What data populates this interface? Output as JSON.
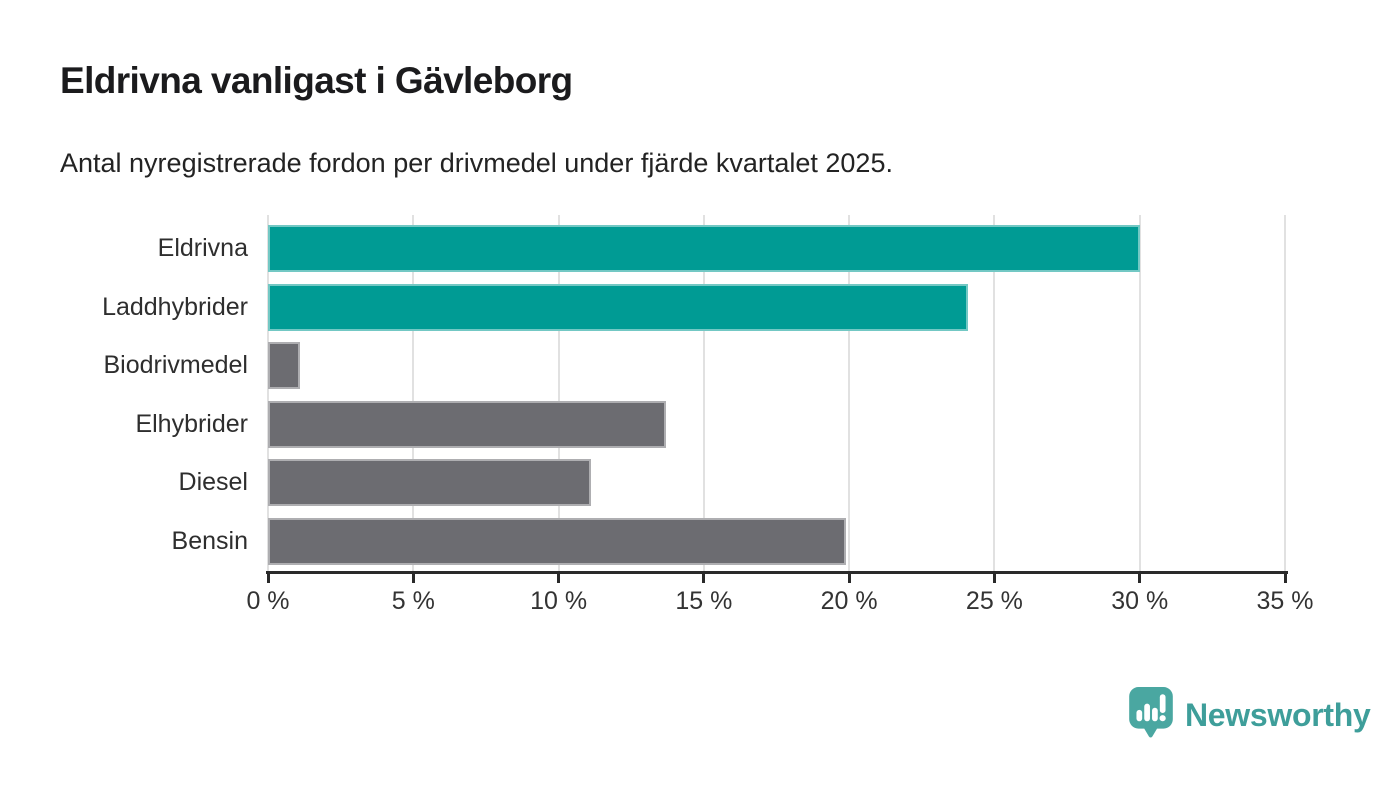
{
  "header": {
    "title": "Eldrivna vanligast i Gävleborg",
    "subtitle": "Antal nyregistrerade fordon per drivmedel under fjärde kvartalet 2025."
  },
  "chart_data": {
    "type": "bar",
    "orientation": "horizontal",
    "title": "Eldrivna vanligast i Gävleborg",
    "subtitle": "Antal nyregistrerade fordon per drivmedel under fjärde kvartalet 2025.",
    "categories": [
      "Eldrivna",
      "Laddhybrider",
      "Biodrivmedel",
      "Elhybrider",
      "Diesel",
      "Bensin"
    ],
    "values": [
      30.0,
      24.1,
      1.1,
      13.7,
      11.1,
      19.9
    ],
    "unit": "%",
    "xlim": [
      0,
      35
    ],
    "x_ticks": [
      0,
      5,
      10,
      15,
      20,
      25,
      30,
      35
    ],
    "x_tick_labels": [
      "0 %",
      "5 %",
      "10 %",
      "15 %",
      "20 %",
      "25 %",
      "30 %",
      "35 %"
    ],
    "bar_colors": [
      "#009b94",
      "#009b94",
      "#6c6c71",
      "#6c6c71",
      "#6c6c71",
      "#6c6c71"
    ],
    "grid": true,
    "legend": false
  },
  "colors": {
    "accent_teal": "#009b94",
    "neutral_gray": "#6c6c71",
    "gridline": "#e1e1e1",
    "axis": "#2a2a2a",
    "brand_teal": "#3e9e9a"
  },
  "footer": {
    "brand_name": "Newsworthy",
    "logo_icon": "newsworthy-speech-bubble-chart-icon"
  }
}
